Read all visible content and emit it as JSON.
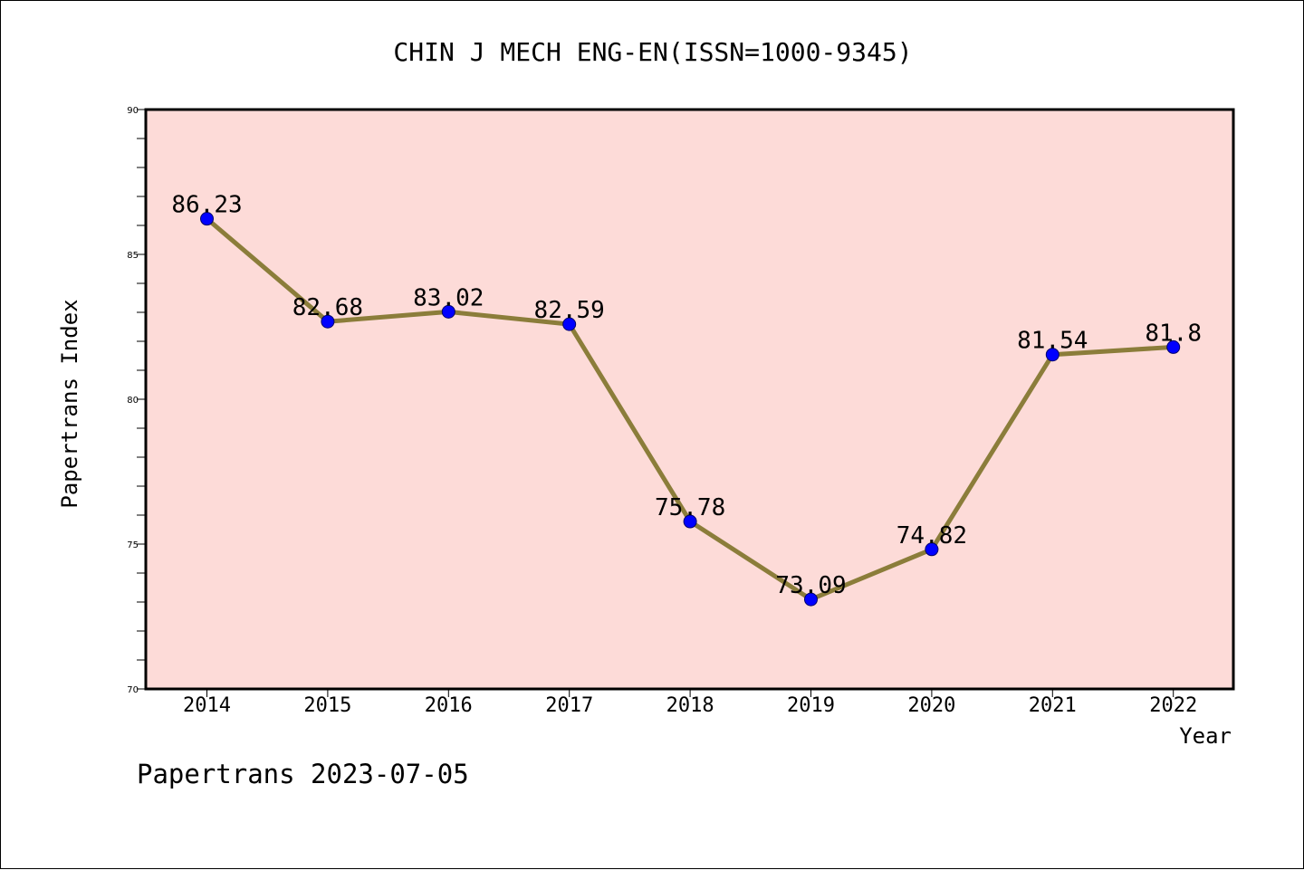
{
  "chart_data": {
    "type": "line",
    "title": "CHIN J MECH ENG-EN(ISSN=1000-9345)",
    "xlabel": "Year",
    "ylabel": "Papertrans Index",
    "categories": [
      "2014",
      "2015",
      "2016",
      "2017",
      "2018",
      "2019",
      "2020",
      "2021",
      "2022"
    ],
    "series": [
      {
        "values": [
          86.23,
          82.68,
          83.02,
          82.59,
          75.78,
          73.09,
          74.82,
          81.54,
          81.8
        ]
      }
    ],
    "data_labels": [
      "86.23",
      "82.68",
      "83.02",
      "82.59",
      "75.78",
      "73.09",
      "74.82",
      "81.54",
      "81.8"
    ],
    "ylim": [
      70,
      90
    ],
    "yticks": [
      70,
      75,
      80,
      85,
      90
    ],
    "ytick_labels": [
      "70",
      "75",
      "80",
      "85",
      "90"
    ],
    "grid": false,
    "colors": {
      "plot_background": "#fddbd8",
      "line": "#8b7d3a",
      "marker": "#0000ff"
    }
  },
  "footer": {
    "text": "Papertrans 2023-07-05"
  }
}
